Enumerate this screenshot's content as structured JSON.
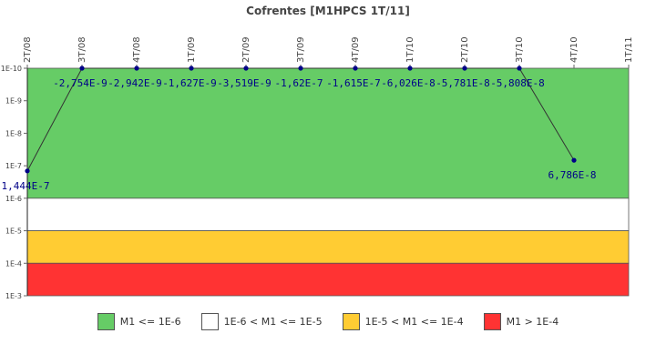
{
  "chart_data": {
    "type": "line",
    "title": "Cofrentes [M1HPCS 1T/11]",
    "x": [
      "2T/08",
      "3T/08",
      "4T/08",
      "1T/09",
      "2T/09",
      "3T/09",
      "4T/09",
      "1T/10",
      "2T/10",
      "3T/10",
      "4T/10",
      "1T/11"
    ],
    "y_scale": "log",
    "y_axis_reversed": true,
    "ylim": [
      "1E-10",
      "1E-3"
    ],
    "y_ticks": [
      "1E-10",
      "1E-9",
      "1E-8",
      "1E-7",
      "1E-6",
      "1E-5",
      "1E-4",
      "1E-3"
    ],
    "grid": false,
    "series": [
      {
        "color": "#000088",
        "values": [
          1.444e-07,
          -2.754e-09,
          -2.942e-09,
          -1.627e-09,
          -3.519e-09,
          -1.62e-07,
          -1.615e-07,
          -6.026e-08,
          -5.781e-08,
          -5.808e-08,
          6.786e-08,
          null
        ],
        "labels": [
          "1,444E-7",
          "-2,754E-9",
          "-2,942E-9",
          "-1,627E-9",
          "-3,519E-9",
          "-1,62E-7",
          "-1,615E-7",
          "-6,026E-8",
          "-5,781E-8",
          "-5,808E-8",
          "6,786E-8",
          ""
        ]
      }
    ],
    "bands": [
      {
        "label": "M1 <= 1E-6",
        "color": "#66cc66",
        "from": 1e-10,
        "to": 1e-06
      },
      {
        "label": "1E-6 < M1 <= 1E-5",
        "color": "#ffffff",
        "from": 1e-06,
        "to": 1e-05
      },
      {
        "label": "1E-5 < M1 <= 1E-4",
        "color": "#ffcc33",
        "from": 1e-05,
        "to": 0.0001
      },
      {
        "label": "M1 > 1E-4",
        "color": "#ff3333",
        "from": 0.0001,
        "to": 0.001
      }
    ],
    "legend_position": "bottom"
  }
}
